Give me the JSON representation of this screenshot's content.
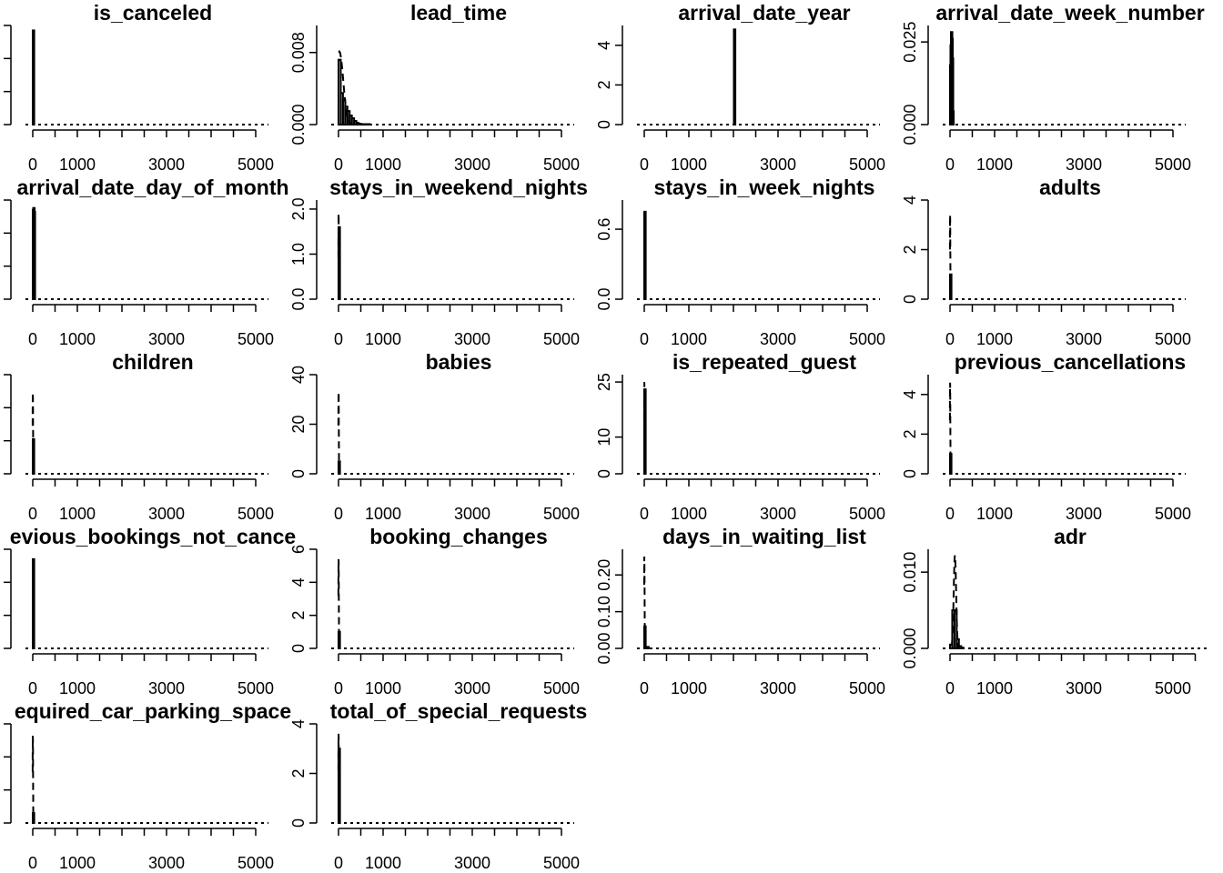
{
  "chart_data": [
    {
      "type": "histogram",
      "title": "is_canceled",
      "xticks": [
        0,
        1000,
        3000,
        5000
      ],
      "xlim": [
        0,
        5000
      ],
      "yticks": [],
      "ylim": [
        0,
        100
      ],
      "bars": [
        {
          "x0": 0,
          "x1": 10,
          "y": 95
        }
      ],
      "density_max": 0
    },
    {
      "type": "histogram",
      "title": "lead_time",
      "xticks": [
        0,
        1000,
        3000,
        5000
      ],
      "xlim": [
        0,
        5000
      ],
      "yticks": [
        "0.000",
        "0.008"
      ],
      "ylim": [
        0,
        0.011
      ],
      "bars": [
        {
          "x0": 0,
          "x1": 50,
          "y": 0.0072
        },
        {
          "x0": 50,
          "x1": 100,
          "y": 0.0035
        },
        {
          "x0": 100,
          "x1": 150,
          "y": 0.0027
        },
        {
          "x0": 150,
          "x1": 200,
          "y": 0.002
        },
        {
          "x0": 200,
          "x1": 250,
          "y": 0.0015
        },
        {
          "x0": 250,
          "x1": 300,
          "y": 0.001
        },
        {
          "x0": 300,
          "x1": 350,
          "y": 0.0007
        },
        {
          "x0": 350,
          "x1": 400,
          "y": 0.0004
        },
        {
          "x0": 400,
          "x1": 450,
          "y": 0.0002
        },
        {
          "x0": 450,
          "x1": 500,
          "y": 0.0001
        },
        {
          "x0": 500,
          "x1": 700,
          "y": 5e-05
        }
      ],
      "density_max": 0.0081,
      "density_peak_x": 20,
      "density_spread": 220
    },
    {
      "type": "histogram",
      "title": "arrival_date_year",
      "xticks": [
        0,
        1000,
        3000,
        5000
      ],
      "xlim": [
        0,
        5000
      ],
      "yticks": [
        0,
        2,
        4
      ],
      "ylim": [
        0,
        5
      ],
      "bars": [
        {
          "x0": 2010,
          "x1": 2025,
          "y": 4.8
        }
      ],
      "density_max": 0
    },
    {
      "type": "histogram",
      "title": "arrival_date_week_number",
      "xticks": [
        0,
        1000,
        3000,
        5000
      ],
      "xlim": [
        0,
        5000
      ],
      "yticks": [
        "0.000",
        "0.025"
      ],
      "ylim": [
        0,
        0.03
      ],
      "bars": [
        {
          "x0": 0,
          "x1": 10,
          "y": 0.018
        },
        {
          "x0": 10,
          "x1": 20,
          "y": 0.024
        },
        {
          "x0": 20,
          "x1": 30,
          "y": 0.028
        },
        {
          "x0": 30,
          "x1": 40,
          "y": 0.026
        },
        {
          "x0": 40,
          "x1": 50,
          "y": 0.02
        },
        {
          "x0": 50,
          "x1": 60,
          "y": 0.004
        }
      ],
      "density_max": 0
    },
    {
      "type": "histogram",
      "title": "arrival_date_day_of_month",
      "xticks": [
        0,
        1000,
        3000,
        5000
      ],
      "xlim": [
        0,
        5000
      ],
      "yticks": [],
      "ylim": [
        0,
        100
      ],
      "bars": [
        {
          "x0": 0,
          "x1": 10,
          "y": 90
        },
        {
          "x0": 10,
          "x1": 20,
          "y": 92
        },
        {
          "x0": 20,
          "x1": 30,
          "y": 88
        }
      ],
      "density_max": 0
    },
    {
      "type": "histogram",
      "title": "stays_in_weekend_nights",
      "xticks": [
        0,
        1000,
        3000,
        5000
      ],
      "xlim": [
        0,
        5000
      ],
      "yticks": [
        "0.0",
        "1.0",
        "2.0"
      ],
      "ylim": [
        0,
        2.2
      ],
      "bars": [
        {
          "x0": 0,
          "x1": 8,
          "y": 1.6
        }
      ],
      "density_max": 1.9,
      "density_peak_x": 2,
      "density_spread": 10
    },
    {
      "type": "histogram",
      "title": "stays_in_week_nights",
      "xticks": [
        0,
        1000,
        3000,
        5000
      ],
      "xlim": [
        0,
        5000
      ],
      "yticks": [
        "0.0",
        "0.6"
      ],
      "ylim": [
        0,
        0.85
      ],
      "bars": [
        {
          "x0": 0,
          "x1": 8,
          "y": 0.75
        }
      ],
      "density_max": 0.0
    },
    {
      "type": "histogram",
      "title": "adults",
      "xticks": [
        0,
        1000,
        3000,
        5000
      ],
      "xlim": [
        0,
        5000
      ],
      "yticks": [
        0,
        2,
        4
      ],
      "ylim": [
        0,
        4
      ],
      "bars": [
        {
          "x0": 0,
          "x1": 8,
          "y": 1.0
        }
      ],
      "density_max": 3.4,
      "density_peak_x": 2,
      "density_spread": 12
    },
    {
      "type": "histogram",
      "title": "children",
      "xticks": [
        0,
        1000,
        3000,
        5000
      ],
      "xlim": [
        0,
        5000
      ],
      "yticks": [],
      "ylim": [
        0,
        100
      ],
      "bars": [
        {
          "x0": 0,
          "x1": 8,
          "y": 35
        }
      ],
      "density_max": 82,
      "density_peak_x": 2,
      "density_spread": 12
    },
    {
      "type": "histogram",
      "title": "babies",
      "xticks": [
        0,
        1000,
        3000,
        5000
      ],
      "xlim": [
        0,
        5000
      ],
      "yticks": [
        0,
        20,
        40
      ],
      "ylim": [
        0,
        40
      ],
      "bars": [
        {
          "x0": 0,
          "x1": 8,
          "y": 5
        }
      ],
      "density_max": 33,
      "density_peak_x": 2,
      "density_spread": 12
    },
    {
      "type": "histogram",
      "title": "is_repeated_guest",
      "xticks": [
        0,
        1000,
        3000,
        5000
      ],
      "xlim": [
        0,
        5000
      ],
      "yticks": [
        0,
        10,
        25
      ],
      "ylim": [
        0,
        27
      ],
      "bars": [
        {
          "x0": 0,
          "x1": 8,
          "y": 23
        }
      ],
      "density_max": 25,
      "density_peak_x": 2,
      "density_spread": 12
    },
    {
      "type": "histogram",
      "title": "previous_cancellations",
      "xticks": [
        0,
        1000,
        3000,
        5000
      ],
      "xlim": [
        0,
        5000
      ],
      "yticks": [
        0,
        2,
        4
      ],
      "ylim": [
        0,
        5
      ],
      "bars": [
        {
          "x0": 0,
          "x1": 8,
          "y": 1.0
        }
      ],
      "density_max": 4.6,
      "density_peak_x": 2,
      "density_spread": 12
    },
    {
      "type": "histogram",
      "title": "evious_bookings_not_cance",
      "xticks": [
        0,
        1000,
        3000,
        5000
      ],
      "xlim": [
        0,
        5000
      ],
      "yticks": [],
      "ylim": [
        0,
        100
      ],
      "bars": [
        {
          "x0": 0,
          "x1": 8,
          "y": 90
        }
      ],
      "density_max": 0
    },
    {
      "type": "histogram",
      "title": "booking_changes",
      "xticks": [
        0,
        1000,
        3000,
        5000
      ],
      "xlim": [
        0,
        5000
      ],
      "yticks": [
        0,
        2,
        4,
        6
      ],
      "ylim": [
        0,
        6
      ],
      "bars": [
        {
          "x0": 0,
          "x1": 8,
          "y": 1.0
        }
      ],
      "density_max": 5.4,
      "density_peak_x": 2,
      "density_spread": 12
    },
    {
      "type": "histogram",
      "title": "days_in_waiting_list",
      "xticks": [
        0,
        1000,
        3000,
        5000
      ],
      "xlim": [
        0,
        5000
      ],
      "yticks": [
        "0.00",
        "0.10",
        "0.20"
      ],
      "ylim": [
        0,
        0.27
      ],
      "bars": [
        {
          "x0": 0,
          "x1": 20,
          "y": 0.06
        },
        {
          "x0": 20,
          "x1": 100,
          "y": 0.004
        }
      ],
      "density_max": 0.25,
      "density_peak_x": 2,
      "density_spread": 15
    },
    {
      "type": "histogram",
      "title": "adr",
      "xticks": [
        0,
        1000,
        3000,
        5000
      ],
      "xlim": [
        0,
        5500
      ],
      "yticks": [
        "0.000",
        "0.010"
      ],
      "ylim": [
        0,
        0.013
      ],
      "bars": [
        {
          "x0": 0,
          "x1": 50,
          "y": 0.0005
        },
        {
          "x0": 50,
          "x1": 100,
          "y": 0.005
        },
        {
          "x0": 100,
          "x1": 150,
          "y": 0.005
        },
        {
          "x0": 150,
          "x1": 200,
          "y": 0.0012
        },
        {
          "x0": 200,
          "x1": 250,
          "y": 0.0003
        },
        {
          "x0": 250,
          "x1": 300,
          "y": 0.0001
        }
      ],
      "density_max": 0.0122,
      "density_peak_x": 110,
      "density_spread": 70
    },
    {
      "type": "histogram",
      "title": "equired_car_parking_space",
      "xticks": [
        0,
        1000,
        3000,
        5000
      ],
      "xlim": [
        0,
        5000
      ],
      "yticks": [],
      "ylim": [
        0,
        100
      ],
      "bars": [
        {
          "x0": 0,
          "x1": 8,
          "y": 10
        }
      ],
      "density_max": 88,
      "density_peak_x": 2,
      "density_spread": 12
    },
    {
      "type": "histogram",
      "title": "total_of_special_requests",
      "xticks": [
        0,
        1000,
        3000,
        5000
      ],
      "xlim": [
        0,
        5000
      ],
      "yticks": [
        0,
        2,
        4
      ],
      "ylim": [
        0,
        4
      ],
      "bars": [
        {
          "x0": 0,
          "x1": 8,
          "y": 3.0
        }
      ],
      "density_max": 3.6,
      "density_peak_x": 2,
      "density_spread": 12
    }
  ]
}
